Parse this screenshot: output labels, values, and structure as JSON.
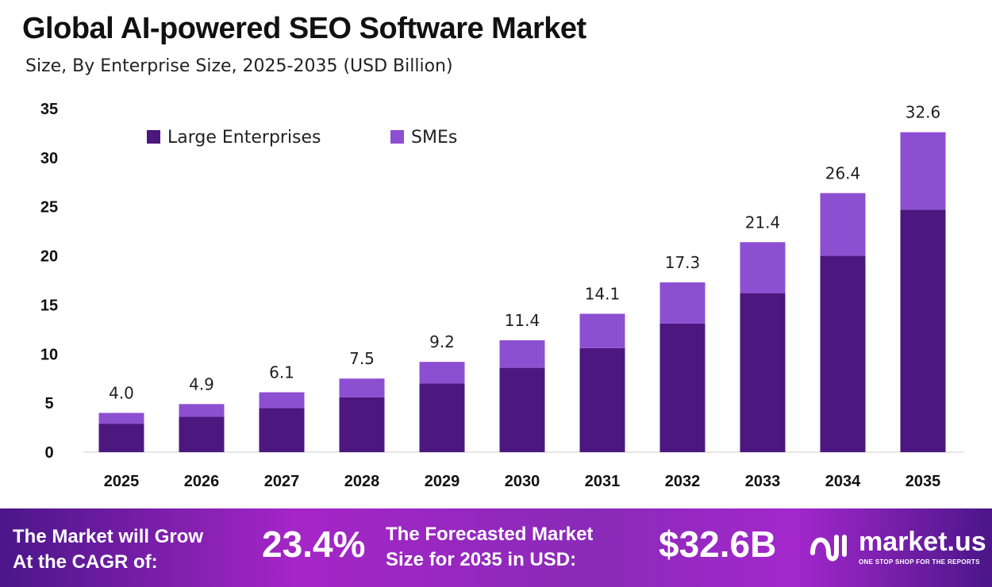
{
  "chart_data": {
    "type": "bar",
    "stacked": true,
    "title": "Global AI-powered SEO Software Market",
    "subtitle": "Size, By Enterprise Size, 2025-2035 (USD Billion)",
    "categories": [
      "2025",
      "2026",
      "2027",
      "2028",
      "2029",
      "2030",
      "2031",
      "2032",
      "2033",
      "2034",
      "2035"
    ],
    "series": [
      {
        "name": "Large Enterprises",
        "color": "#4c177f",
        "values": [
          2.9,
          3.6,
          4.5,
          5.6,
          7.0,
          8.6,
          10.6,
          13.1,
          16.2,
          20.0,
          24.7
        ]
      },
      {
        "name": "SMEs",
        "color": "#8d4fd1",
        "values": [
          1.1,
          1.3,
          1.6,
          1.9,
          2.2,
          2.8,
          3.5,
          4.2,
          5.2,
          6.4,
          7.9
        ]
      }
    ],
    "totals": [
      "4.0",
      "4.9",
      "6.1",
      "7.5",
      "9.2",
      "11.4",
      "14.1",
      "17.3",
      "21.4",
      "26.4",
      "32.6"
    ],
    "ylim": [
      0,
      35
    ],
    "yticks": [
      0,
      5,
      10,
      15,
      20,
      25,
      30,
      35
    ],
    "xlabel": "",
    "ylabel": "",
    "grid": false,
    "legend": "top-left"
  },
  "footer": {
    "cagr_label_1": "The Market will Grow",
    "cagr_label_2": "At the CAGR of:",
    "cagr_value": "23.4%",
    "forecast_label_1": "The Forecasted Market",
    "forecast_label_2": "Size for 2035 in USD:",
    "forecast_value": "$32.6B",
    "logo_text": "market.us",
    "logo_tagline": "ONE STOP SHOP FOR THE REPORTS"
  }
}
